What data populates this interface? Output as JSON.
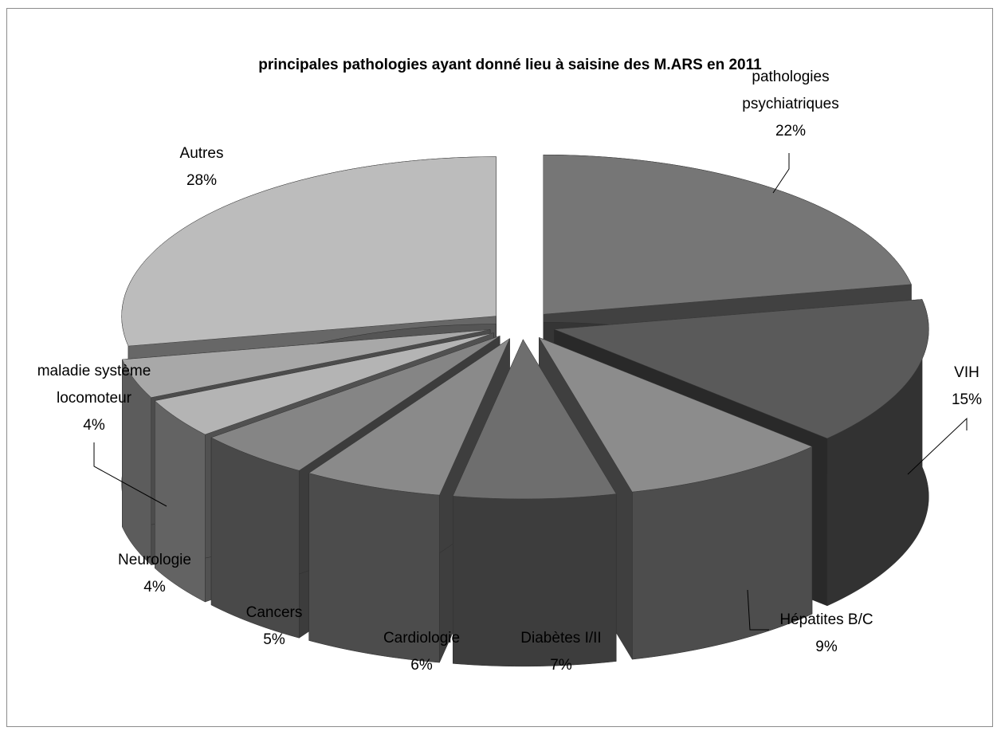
{
  "chart_data": {
    "type": "pie",
    "style": "3d-exploded",
    "title": "principales pathologies ayant donné lieu à  saisine des M.ARS en 2011",
    "slices": [
      {
        "label": "pathologies psychiatriques",
        "label_lines": [
          "pathologies",
          "psychiatriques"
        ],
        "value": 22,
        "value_label": "22%",
        "color": "#767676"
      },
      {
        "label": "VIH",
        "label_lines": [
          "VIH"
        ],
        "value": 15,
        "value_label": "15%",
        "color": "#5a5a5a"
      },
      {
        "label": "Hépatites B/C",
        "label_lines": [
          "Hépatites B/C"
        ],
        "value": 9,
        "value_label": "9%",
        "color": "#8c8c8c"
      },
      {
        "label": "Diabètes I/II",
        "label_lines": [
          "Diabètes I/II"
        ],
        "value": 7,
        "value_label": "7%",
        "color": "#6e6e6e"
      },
      {
        "label": "Cardiologie",
        "label_lines": [
          "Cardiologie"
        ],
        "value": 6,
        "value_label": "6%",
        "color": "#8a8a8a"
      },
      {
        "label": "Cancers",
        "label_lines": [
          "Cancers"
        ],
        "value": 5,
        "value_label": "5%",
        "color": "#858585"
      },
      {
        "label": "Neurologie",
        "label_lines": [
          "Neurologie"
        ],
        "value": 4,
        "value_label": "4%",
        "color": "#b4b4b4"
      },
      {
        "label": "maladie système locomoteur",
        "label_lines": [
          "maladie système",
          "locomoteur"
        ],
        "value": 4,
        "value_label": "4%",
        "color": "#a8a8a8"
      },
      {
        "label": "Autres",
        "label_lines": [
          "Autres"
        ],
        "value": 28,
        "value_label": "28%",
        "color": "#bcbcbc"
      }
    ]
  }
}
